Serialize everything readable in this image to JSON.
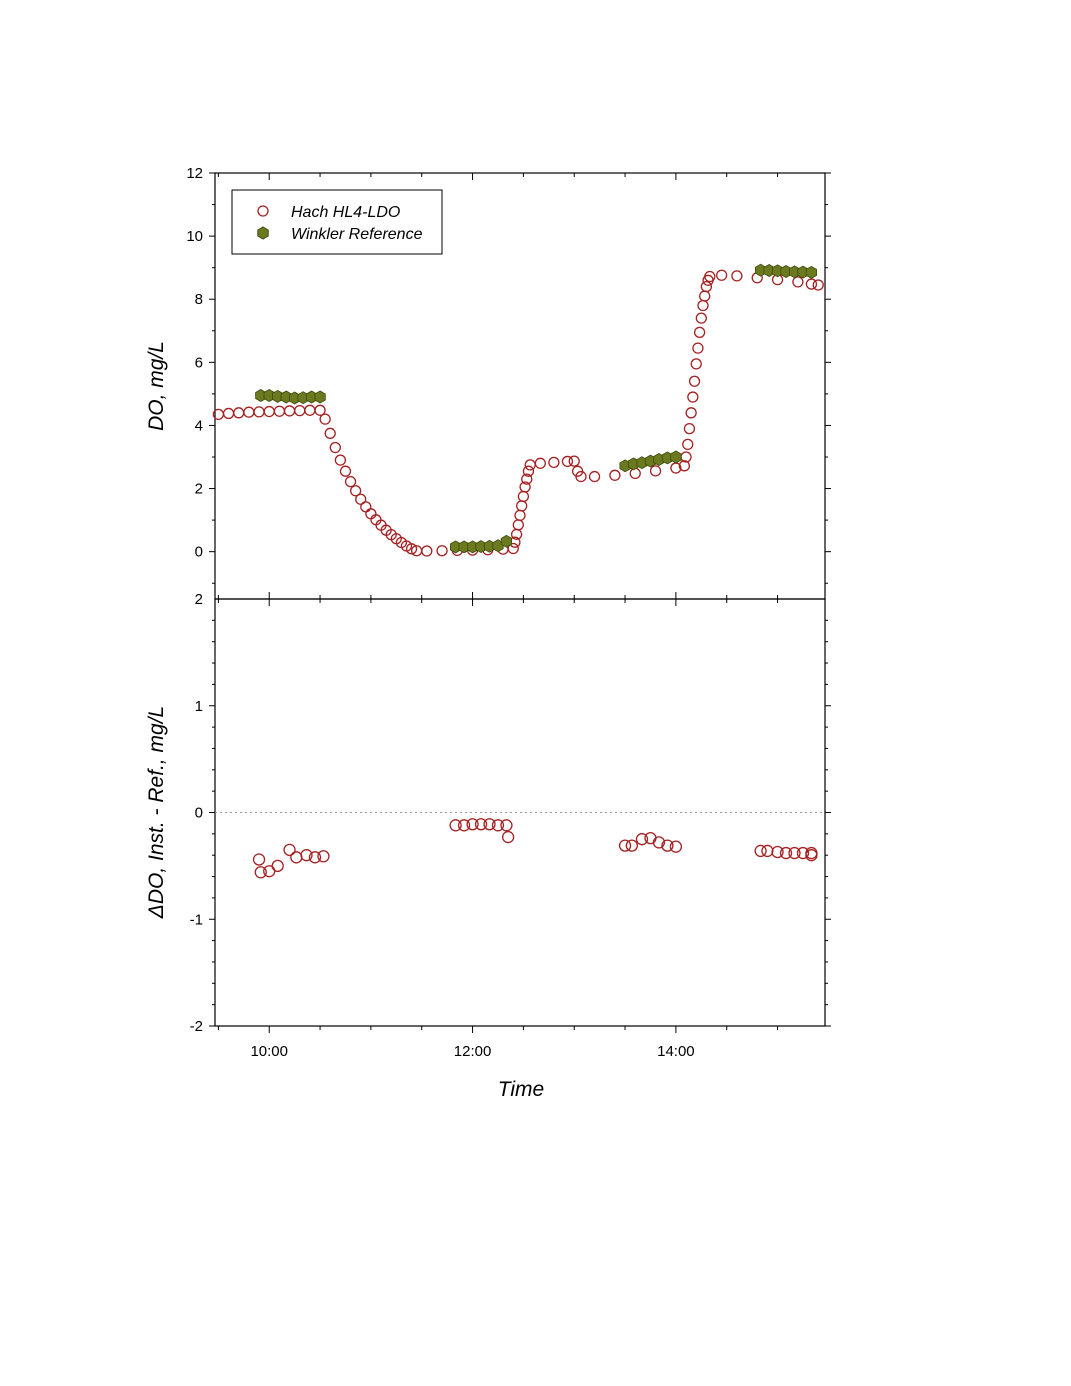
{
  "colors": {
    "hach": "#a52020",
    "winkler_fill": "#6b7a1e",
    "winkler_stroke": "#3f4a10",
    "axis": "#000000",
    "zero_line": "#999999"
  },
  "chart_data": [
    {
      "type": "scatter",
      "panel": "top",
      "xlabel": "",
      "ylabel": "DO, mg/L",
      "x_unit": "clock time (HH:MM)",
      "xlim": [
        "09:28",
        "15:28"
      ],
      "ylim": [
        -1.5,
        12
      ],
      "yticks": [
        "0",
        "2",
        "4",
        "6",
        "8",
        "10",
        "12"
      ],
      "minor_y_label": "2",
      "legend": {
        "placement": "top-left",
        "entries": [
          {
            "name": "Hach HL4-LDO",
            "marker": "open-circle"
          },
          {
            "name": "Winkler Reference",
            "marker": "filled-hexagon"
          }
        ]
      },
      "series": [
        {
          "name": "Hach HL4-LDO",
          "marker": "open-circle",
          "points": [
            [
              "09:30",
              4.35
            ],
            [
              "09:36",
              4.38
            ],
            [
              "09:42",
              4.4
            ],
            [
              "09:48",
              4.42
            ],
            [
              "09:54",
              4.43
            ],
            [
              "10:00",
              4.44
            ],
            [
              "10:06",
              4.45
            ],
            [
              "10:12",
              4.46
            ],
            [
              "10:18",
              4.47
            ],
            [
              "10:24",
              4.48
            ],
            [
              "10:30",
              4.48
            ],
            [
              "10:33",
              4.2
            ],
            [
              "10:36",
              3.75
            ],
            [
              "10:39",
              3.3
            ],
            [
              "10:42",
              2.9
            ],
            [
              "10:45",
              2.55
            ],
            [
              "10:48",
              2.22
            ],
            [
              "10:51",
              1.93
            ],
            [
              "10:54",
              1.66
            ],
            [
              "10:57",
              1.42
            ],
            [
              "11:00",
              1.2
            ],
            [
              "11:03",
              1.01
            ],
            [
              "11:06",
              0.84
            ],
            [
              "11:09",
              0.68
            ],
            [
              "11:12",
              0.54
            ],
            [
              "11:15",
              0.41
            ],
            [
              "11:18",
              0.29
            ],
            [
              "11:21",
              0.18
            ],
            [
              "11:24",
              0.09
            ],
            [
              "11:27",
              0.03
            ],
            [
              "11:33",
              0.02
            ],
            [
              "11:42",
              0.03
            ],
            [
              "11:51",
              0.04
            ],
            [
              "12:00",
              0.05
            ],
            [
              "12:09",
              0.06
            ],
            [
              "12:18",
              0.08
            ],
            [
              "12:24",
              0.1
            ],
            [
              "12:25",
              0.3
            ],
            [
              "12:26",
              0.55
            ],
            [
              "12:27",
              0.85
            ],
            [
              "12:28",
              1.15
            ],
            [
              "12:29",
              1.45
            ],
            [
              "12:30",
              1.75
            ],
            [
              "12:31",
              2.05
            ],
            [
              "12:32",
              2.3
            ],
            [
              "12:33",
              2.55
            ],
            [
              "12:34",
              2.75
            ],
            [
              "12:40",
              2.8
            ],
            [
              "12:48",
              2.83
            ],
            [
              "12:56",
              2.86
            ],
            [
              "13:00",
              2.87
            ],
            [
              "13:02",
              2.55
            ],
            [
              "13:04",
              2.38
            ],
            [
              "13:12",
              2.38
            ],
            [
              "13:24",
              2.42
            ],
            [
              "13:36",
              2.48
            ],
            [
              "13:48",
              2.56
            ],
            [
              "14:00",
              2.65
            ],
            [
              "14:05",
              2.72
            ],
            [
              "14:06",
              3.0
            ],
            [
              "14:07",
              3.4
            ],
            [
              "14:08",
              3.9
            ],
            [
              "14:09",
              4.4
            ],
            [
              "14:10",
              4.9
            ],
            [
              "14:11",
              5.4
            ],
            [
              "14:12",
              5.95
            ],
            [
              "14:13",
              6.45
            ],
            [
              "14:14",
              6.95
            ],
            [
              "14:15",
              7.4
            ],
            [
              "14:16",
              7.8
            ],
            [
              "14:17",
              8.1
            ],
            [
              "14:18",
              8.4
            ],
            [
              "14:19",
              8.6
            ],
            [
              "14:20",
              8.72
            ],
            [
              "14:27",
              8.76
            ],
            [
              "14:36",
              8.74
            ],
            [
              "14:48",
              8.68
            ],
            [
              "15:00",
              8.62
            ],
            [
              "15:12",
              8.55
            ],
            [
              "15:20",
              8.48
            ],
            [
              "15:24",
              8.45
            ]
          ]
        },
        {
          "name": "Winkler Reference",
          "marker": "filled-hexagon",
          "points": [
            [
              "09:55",
              4.95
            ],
            [
              "10:00",
              4.95
            ],
            [
              "10:05",
              4.92
            ],
            [
              "10:10",
              4.9
            ],
            [
              "10:15",
              4.87
            ],
            [
              "10:20",
              4.88
            ],
            [
              "10:25",
              4.9
            ],
            [
              "10:30",
              4.9
            ],
            [
              "11:50",
              0.15
            ],
            [
              "11:55",
              0.15
            ],
            [
              "12:00",
              0.15
            ],
            [
              "12:05",
              0.16
            ],
            [
              "12:10",
              0.17
            ],
            [
              "12:15",
              0.19
            ],
            [
              "12:20",
              0.33
            ],
            [
              "13:30",
              2.72
            ],
            [
              "13:35",
              2.78
            ],
            [
              "13:40",
              2.82
            ],
            [
              "13:45",
              2.87
            ],
            [
              "13:50",
              2.92
            ],
            [
              "13:55",
              2.97
            ],
            [
              "14:00",
              3.0
            ],
            [
              "14:50",
              8.92
            ],
            [
              "14:55",
              8.91
            ],
            [
              "15:00",
              8.9
            ],
            [
              "15:05",
              8.88
            ],
            [
              "15:10",
              8.87
            ],
            [
              "15:15",
              8.86
            ],
            [
              "15:20",
              8.85
            ]
          ]
        }
      ]
    },
    {
      "type": "scatter",
      "panel": "bottom",
      "xlabel": "Time",
      "ylabel": "ΔDO, Inst. - Ref., mg/L",
      "x_unit": "clock time (HH:MM)",
      "xlim": [
        "09:28",
        "15:28"
      ],
      "ylim": [
        -2,
        2
      ],
      "yticks": [
        "-2",
        "-1",
        "0",
        "1"
      ],
      "xticks": [
        "10:00",
        "12:00",
        "14:00"
      ],
      "zero_line": true,
      "series": [
        {
          "name": "Hach HL4-LDO",
          "marker": "open-circle",
          "points": [
            [
              "09:54",
              -0.44
            ],
            [
              "09:55",
              -0.56
            ],
            [
              "10:00",
              -0.55
            ],
            [
              "10:05",
              -0.5
            ],
            [
              "10:12",
              -0.35
            ],
            [
              "10:16",
              -0.42
            ],
            [
              "10:22",
              -0.4
            ],
            [
              "10:27",
              -0.42
            ],
            [
              "10:32",
              -0.41
            ],
            [
              "11:50",
              -0.12
            ],
            [
              "11:55",
              -0.12
            ],
            [
              "12:00",
              -0.11
            ],
            [
              "12:05",
              -0.11
            ],
            [
              "12:10",
              -0.11
            ],
            [
              "12:15",
              -0.12
            ],
            [
              "12:20",
              -0.12
            ],
            [
              "12:21",
              -0.23
            ],
            [
              "13:30",
              -0.31
            ],
            [
              "13:34",
              -0.31
            ],
            [
              "13:40",
              -0.25
            ],
            [
              "13:45",
              -0.24
            ],
            [
              "13:50",
              -0.28
            ],
            [
              "13:55",
              -0.31
            ],
            [
              "14:00",
              -0.32
            ],
            [
              "14:50",
              -0.36
            ],
            [
              "14:54",
              -0.36
            ],
            [
              "15:00",
              -0.37
            ],
            [
              "15:05",
              -0.38
            ],
            [
              "15:10",
              -0.38
            ],
            [
              "15:15",
              -0.38
            ],
            [
              "15:20",
              -0.38
            ],
            [
              "15:20",
              -0.4
            ]
          ]
        }
      ]
    }
  ]
}
